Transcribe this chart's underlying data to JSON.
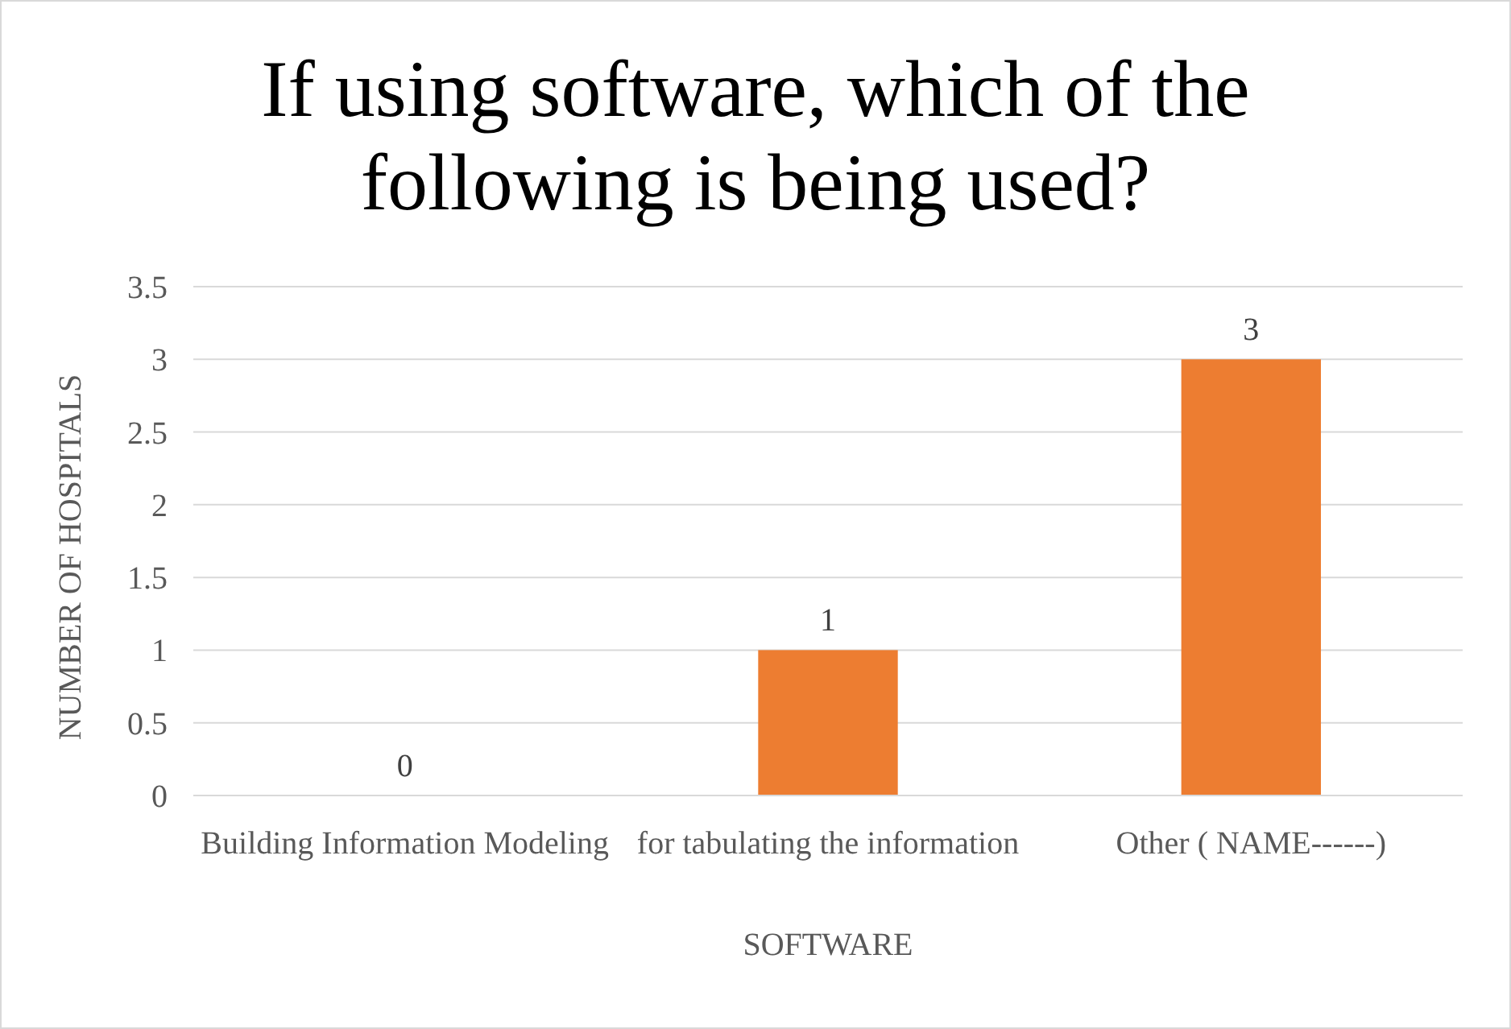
{
  "chart_data": {
    "type": "bar",
    "title": "If using software, which of the following is being used?",
    "xlabel": "SOFTWARE",
    "ylabel": "NUMBER OF HOSPITALS",
    "categories": [
      "Building Information Modeling",
      "for tabulating the information",
      "Other ( NAME------)"
    ],
    "values": [
      0,
      1,
      3
    ],
    "color": "#ed7d31",
    "data_labels": true,
    "ylim": [
      0,
      3.5
    ],
    "yticks": [
      0,
      0.5,
      1,
      1.5,
      2,
      2.5,
      3,
      3.5
    ],
    "grid": "y"
  }
}
